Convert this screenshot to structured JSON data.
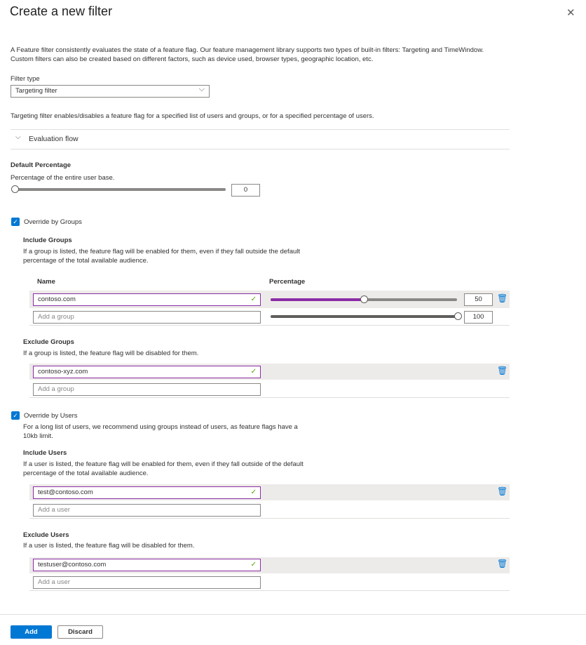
{
  "header": {
    "title": "Create a new filter",
    "close_icon": "close-icon"
  },
  "description": [
    "A Feature filter consistently evaluates the state of a feature flag. Our feature management library supports two types of built-in filters: Targeting and TimeWindow.",
    "Custom filters can also be created based on different factors, such as device used, browser types, geographic location, etc."
  ],
  "filter_type": {
    "label": "Filter type",
    "value": "Targeting filter"
  },
  "targeting_desc": "Targeting filter enables/disables a feature flag for a specified list of users and groups, or for a specified percentage of users.",
  "evaluation_flow": "Evaluation flow",
  "default_percentage": {
    "title": "Default Percentage",
    "desc": "Percentage of the entire user base.",
    "value": "0"
  },
  "groups": {
    "override_label": "Override by Groups",
    "checked": true,
    "include_title": "Include Groups",
    "include_desc": [
      "If a group is listed, the feature flag will be enabled for them, even if they fall outside the default",
      "percentage of the total available audience."
    ],
    "col_name": "Name",
    "col_percentage": "Percentage",
    "include_rows": [
      {
        "name": "contoso.com",
        "percentage": "50"
      }
    ],
    "add_placeholder": "Add a group",
    "add_percentage": "100",
    "exclude_title": "Exclude Groups",
    "exclude_desc": "If a group is listed, the feature flag will be disabled for them.",
    "exclude_rows": [
      {
        "name": "contoso-xyz.com"
      }
    ]
  },
  "users": {
    "override_label": "Override by Users",
    "checked": true,
    "note": [
      "For a long list of users, we recommend using groups instead of users, as feature flags have a",
      "10kb limit."
    ],
    "include_title": "Include Users",
    "include_desc": [
      "If a user is listed, the feature flag will be enabled for them, even if they fall outside of the default",
      "percentage of the total available audience."
    ],
    "include_rows": [
      {
        "name": "test@contoso.com"
      }
    ],
    "add_placeholder": "Add a user",
    "exclude_title": "Exclude Users",
    "exclude_desc": "If a user is listed, the feature flag will be disabled for them.",
    "exclude_rows": [
      {
        "name": "testuser@contoso.com"
      }
    ]
  },
  "footer": {
    "add": "Add",
    "discard": "Discard"
  },
  "colors": {
    "accent": "#0078d4",
    "slider_fill": "#8a2da5",
    "valid": "#57a300"
  }
}
